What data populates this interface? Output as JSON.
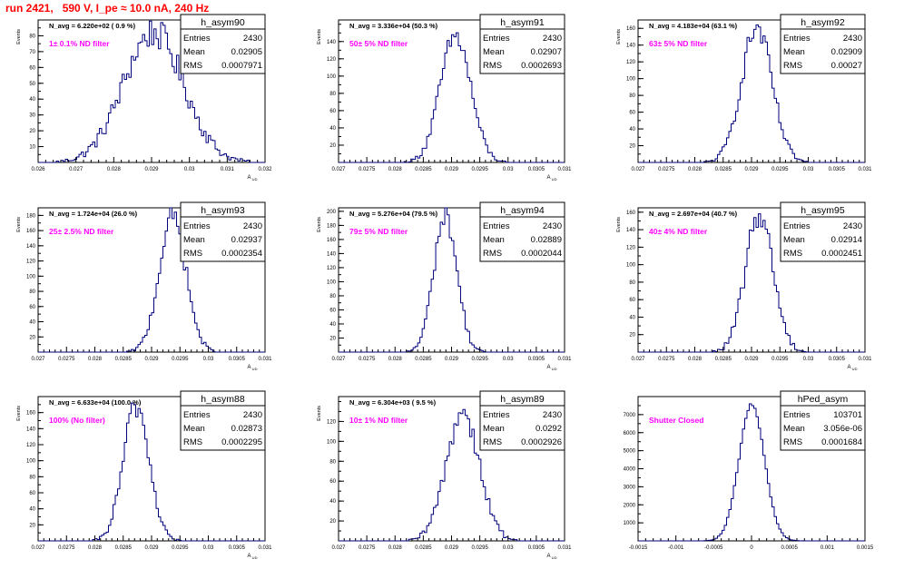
{
  "page_title": "run 2421,   590 V, I_pe ≈ 10.0 nA, 240 Hz",
  "colors": {
    "histogram": "#00007f",
    "title_text": "#ff0000",
    "annotation": "#ff00ff",
    "axes": "#000000"
  },
  "chart_data": [
    {
      "type": "bar",
      "name": "h_asym90",
      "title": "N_avg = 6.220e+02 ( 0.9 %)",
      "annotation": "1± 0.1% ND filter",
      "xlabel": "A_UD",
      "ylabel": "Events",
      "xlim": [
        0.026,
        0.032
      ],
      "ylim": [
        0,
        90
      ],
      "xticks": [
        0.026,
        0.027,
        0.028,
        0.029,
        0.03,
        0.031,
        0.032
      ],
      "xtick_labels": [
        "0.026",
        "0.027",
        "0.028",
        "0.029",
        "0.03",
        "0.031",
        "0.032"
      ],
      "yticks": [
        10,
        20,
        30,
        40,
        50,
        60,
        70,
        80
      ],
      "stats": {
        "Entries": "2430",
        "Mean": "0.02905",
        "RMS": "0.0007971"
      },
      "distribution": {
        "mean": 0.02905,
        "rms": 0.0007971,
        "entries": 2430,
        "peak": 82,
        "xmin": 0.026,
        "xmax": 0.032
      }
    },
    {
      "type": "bar",
      "name": "h_asym91",
      "title": "N_avg = 3.336e+04 (50.3 %)",
      "annotation": "50± 5% ND filter",
      "xlabel": "A_UD",
      "ylabel": "Events",
      "xlim": [
        0.027,
        0.031
      ],
      "ylim": [
        0,
        165
      ],
      "xticks": [
        0.027,
        0.0275,
        0.028,
        0.0285,
        0.029,
        0.0295,
        0.03,
        0.0305,
        0.031
      ],
      "xtick_labels": [
        "0.027",
        "0.0275",
        "0.028",
        "0.0285",
        "0.029",
        "0.0295",
        "0.03",
        "0.0305",
        "0.031"
      ],
      "yticks": [
        20,
        40,
        60,
        80,
        100,
        120,
        140
      ],
      "stats": {
        "Entries": "2430",
        "Mean": "0.02907",
        "RMS": "0.0002693"
      },
      "distribution": {
        "mean": 0.02907,
        "rms": 0.0002693,
        "entries": 2430,
        "peak": 146,
        "xmin": 0.027,
        "xmax": 0.031
      }
    },
    {
      "type": "bar",
      "name": "h_asym92",
      "title": "N_avg = 4.183e+04 (63.1 %)",
      "annotation": "63± 5% ND filter",
      "xlabel": "",
      "ylabel": "Events",
      "xlim": [
        0.027,
        0.031
      ],
      "ylim": [
        0,
        170
      ],
      "xticks": [
        0.027,
        0.0275,
        0.028,
        0.0285,
        0.029,
        0.0295,
        0.03,
        0.0305,
        0.031
      ],
      "xtick_labels": [
        "0.027",
        "0.0275",
        "0.028",
        "0.0285",
        "0.029",
        "0.0295",
        "0.03",
        "0.0305",
        "0.031"
      ],
      "yticks": [
        20,
        40,
        60,
        80,
        100,
        120,
        140,
        160
      ],
      "stats": {
        "Entries": "2430",
        "Mean": "0.02909",
        "RMS": "0.00027"
      },
      "distribution": {
        "mean": 0.02909,
        "rms": 0.00027,
        "entries": 2430,
        "peak": 160,
        "xmin": 0.027,
        "xmax": 0.031
      }
    },
    {
      "type": "bar",
      "name": "h_asym93",
      "title": "N_avg = 1.724e+04 (26.0 %)",
      "annotation": "25± 2.5% ND filter",
      "xlabel": "A_UD",
      "ylabel": "Events",
      "xlim": [
        0.027,
        0.031
      ],
      "ylim": [
        0,
        190
      ],
      "xticks": [
        0.027,
        0.0275,
        0.028,
        0.0285,
        0.029,
        0.0295,
        0.03,
        0.0305,
        0.031
      ],
      "xtick_labels": [
        "0.027",
        "0.0275",
        "0.028",
        "0.0285",
        "0.029",
        "0.0295",
        "0.03",
        "0.0305",
        "0.031"
      ],
      "yticks": [
        20,
        40,
        60,
        80,
        100,
        120,
        140,
        160,
        180
      ],
      "stats": {
        "Entries": "2430",
        "Mean": "0.02937",
        "RMS": "0.0002354"
      },
      "distribution": {
        "mean": 0.02937,
        "rms": 0.0002354,
        "entries": 2430,
        "peak": 178,
        "xmin": 0.027,
        "xmax": 0.031
      }
    },
    {
      "type": "bar",
      "name": "h_asym94",
      "title": "N_avg = 5.276e+04 (79.5 %)",
      "annotation": "79± 5% ND filter",
      "xlabel": "A_UD",
      "ylabel": "Events",
      "xlim": [
        0.027,
        0.031
      ],
      "ylim": [
        0,
        205
      ],
      "xticks": [
        0.027,
        0.0275,
        0.028,
        0.0285,
        0.029,
        0.0295,
        0.03,
        0.0305,
        0.031
      ],
      "xtick_labels": [
        "0.027",
        "0.0275",
        "0.028",
        "0.0285",
        "0.029",
        "0.0295",
        "0.03",
        "0.0305",
        "0.031"
      ],
      "yticks": [
        20,
        40,
        60,
        80,
        100,
        120,
        140,
        160,
        180,
        200
      ],
      "stats": {
        "Entries": "2430",
        "Mean": "0.02889",
        "RMS": "0.0002044"
      },
      "distribution": {
        "mean": 0.02889,
        "rms": 0.0002044,
        "entries": 2430,
        "peak": 195,
        "xmin": 0.027,
        "xmax": 0.031
      }
    },
    {
      "type": "bar",
      "name": "h_asym95",
      "title": "N_avg = 2.697e+04 (40.7 %)",
      "annotation": "40± 4% ND filter",
      "xlabel": "A_UD",
      "ylabel": "Events",
      "xlim": [
        0.027,
        0.031
      ],
      "ylim": [
        0,
        165
      ],
      "xticks": [
        0.027,
        0.0275,
        0.028,
        0.0285,
        0.029,
        0.0295,
        0.03,
        0.0305,
        0.031
      ],
      "xtick_labels": [
        "0.027",
        "0.0275",
        "0.028",
        "0.0285",
        "0.029",
        "0.0295",
        "0.03",
        "0.0305",
        "0.031"
      ],
      "yticks": [
        20,
        40,
        60,
        80,
        100,
        120,
        140,
        160
      ],
      "stats": {
        "Entries": "2430",
        "Mean": "0.02914",
        "RMS": "0.0002451"
      },
      "distribution": {
        "mean": 0.02914,
        "rms": 0.0002451,
        "entries": 2430,
        "peak": 158,
        "xmin": 0.027,
        "xmax": 0.031
      }
    },
    {
      "type": "bar",
      "name": "h_asym88",
      "title": "N_avg = 6.633e+04 (100.0 %)",
      "annotation": "100% (No filter)",
      "xlabel": "A_UD",
      "ylabel": "Events",
      "xlim": [
        0.027,
        0.031
      ],
      "ylim": [
        0,
        180
      ],
      "xticks": [
        0.027,
        0.0275,
        0.028,
        0.0285,
        0.029,
        0.0295,
        0.03,
        0.0305,
        0.031
      ],
      "xtick_labels": [
        "0.027",
        "0.0275",
        "0.028",
        "0.0285",
        "0.029",
        "0.0295",
        "0.03",
        "0.0305",
        "0.031"
      ],
      "yticks": [
        20,
        40,
        60,
        80,
        100,
        120,
        140,
        160
      ],
      "stats": {
        "Entries": "2430",
        "Mean": "0.02873",
        "RMS": "0.0002295"
      },
      "distribution": {
        "mean": 0.02873,
        "rms": 0.0002295,
        "entries": 2430,
        "peak": 168,
        "xmin": 0.027,
        "xmax": 0.031
      }
    },
    {
      "type": "bar",
      "name": "h_asym89",
      "title": "N_avg = 6.304e+03 ( 9.5 %)",
      "annotation": "10± 1% ND filter",
      "xlabel": "A_UD",
      "ylabel": "Events",
      "xlim": [
        0.027,
        0.031
      ],
      "ylim": [
        0,
        145
      ],
      "xticks": [
        0.027,
        0.0275,
        0.028,
        0.0285,
        0.029,
        0.0295,
        0.03,
        0.0305,
        0.031
      ],
      "xtick_labels": [
        "0.027",
        "0.0275",
        "0.028",
        "0.0285",
        "0.029",
        "0.0295",
        "0.03",
        "0.0305",
        "0.031"
      ],
      "yticks": [
        20,
        40,
        60,
        80,
        100,
        120
      ],
      "stats": {
        "Entries": "2430",
        "Mean": "0.0292",
        "RMS": "0.0002926"
      },
      "distribution": {
        "mean": 0.0292,
        "rms": 0.0002926,
        "entries": 2430,
        "peak": 130,
        "xmin": 0.027,
        "xmax": 0.031
      }
    },
    {
      "type": "bar",
      "name": "hPed_asym",
      "title": "",
      "annotation": "Shutter Closed",
      "xlabel": "",
      "ylabel": "",
      "xlim": [
        -0.0015,
        0.0015
      ],
      "ylim": [
        0,
        8000
      ],
      "xticks": [
        -0.0015,
        -0.001,
        -0.0005,
        0,
        0.0005,
        0.001,
        0.0015
      ],
      "xtick_labels": [
        "-0.0015",
        "-0.001",
        "-0.0005",
        "0",
        "0.0005",
        "0.001",
        "0.0015"
      ],
      "yticks": [
        1000,
        2000,
        3000,
        4000,
        5000,
        6000,
        7000
      ],
      "stats": {
        "Entries": "103701",
        "Mean": "3.056e-06",
        "RMS": "0.0001684"
      },
      "distribution": {
        "mean": 3.056e-06,
        "rms": 0.0001684,
        "entries": 103701,
        "peak": 7550,
        "xmin": -0.0015,
        "xmax": 0.0015
      }
    }
  ]
}
